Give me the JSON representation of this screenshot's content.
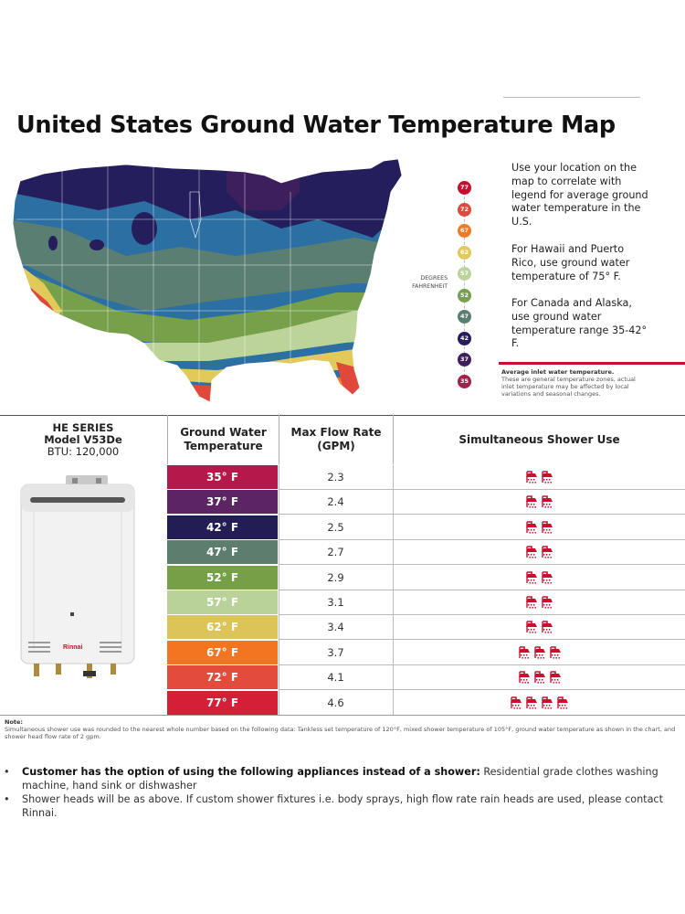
{
  "title": "United States Ground Water Temperature Map",
  "legend": {
    "values": [
      "77",
      "72",
      "67",
      "62",
      "57",
      "52",
      "47",
      "42",
      "37",
      "35"
    ],
    "colors": [
      "#c8102e",
      "#e0483c",
      "#f07a26",
      "#e1c95a",
      "#bcd39a",
      "#77a04a",
      "#5a7e72",
      "#241e5c",
      "#3e1f5e",
      "#a51e4c"
    ],
    "axis_label": [
      "DEGREES",
      "FAHRENHEIT"
    ]
  },
  "description": [
    "Use your location on the map to correlate with legend for average ground water temperature in the U.S.",
    "For Hawaii and Puerto Rico, use ground water temperature of 75° F.",
    "For Canada and Alaska, use ground water temperature range 35-42° F."
  ],
  "avg_note": {
    "title": "Average inlet water temperature.",
    "text": "These are general temperature zones, actual inlet temperature may be affected by local variations and seasonal changes."
  },
  "model": {
    "series": "HE SERIES",
    "name": "Model V53De",
    "btu": "BTU: 120,000"
  },
  "headers": {
    "ground": "Ground Water Temperature",
    "flow": "Max Flow Rate (GPM)",
    "shower": "Simultaneous Shower Use"
  },
  "rows": [
    {
      "temp": "35° F",
      "flow": "2.3",
      "showers": 2,
      "color": "#b5194c"
    },
    {
      "temp": "37° F",
      "flow": "2.4",
      "showers": 2,
      "color": "#5b2463"
    },
    {
      "temp": "42° F",
      "flow": "2.5",
      "showers": 2,
      "color": "#221d55"
    },
    {
      "temp": "47° F",
      "flow": "2.7",
      "showers": 2,
      "color": "#5d7d6f"
    },
    {
      "temp": "52° F",
      "flow": "2.9",
      "showers": 2,
      "color": "#76a048"
    },
    {
      "temp": "57° F",
      "flow": "3.1",
      "showers": 2,
      "color": "#b9d29a"
    },
    {
      "temp": "62° F",
      "flow": "3.4",
      "showers": 2,
      "color": "#ddc458"
    },
    {
      "temp": "67° F",
      "flow": "3.7",
      "showers": 3,
      "color": "#f37421"
    },
    {
      "temp": "72° F",
      "flow": "4.1",
      "showers": 3,
      "color": "#e34b3c"
    },
    {
      "temp": "77° F",
      "flow": "4.6",
      "showers": 4,
      "color": "#d41f36"
    }
  ],
  "heater_brand": "Rinnai",
  "note": {
    "label": "Note:",
    "text": "Simultaneous shower use was rounded to the nearest whole number based on the following data: Tankless set temperature of 120°F, mixed shower temperature of 105°F, ground water temperature as shown in the chart, and shower head flow rate of 2 gpm."
  },
  "bullets": [
    {
      "bold": "Customer has the option of using the following appliances instead of a shower:",
      "text": " Residential grade clothes washing machine, hand sink or dishwasher"
    },
    {
      "bold": "",
      "text": "Shower heads will be as above. If custom shower fixtures  i.e. body sprays, high flow rate rain heads are used, please contact Rinnai."
    }
  ],
  "shower_color": "#c8102e"
}
